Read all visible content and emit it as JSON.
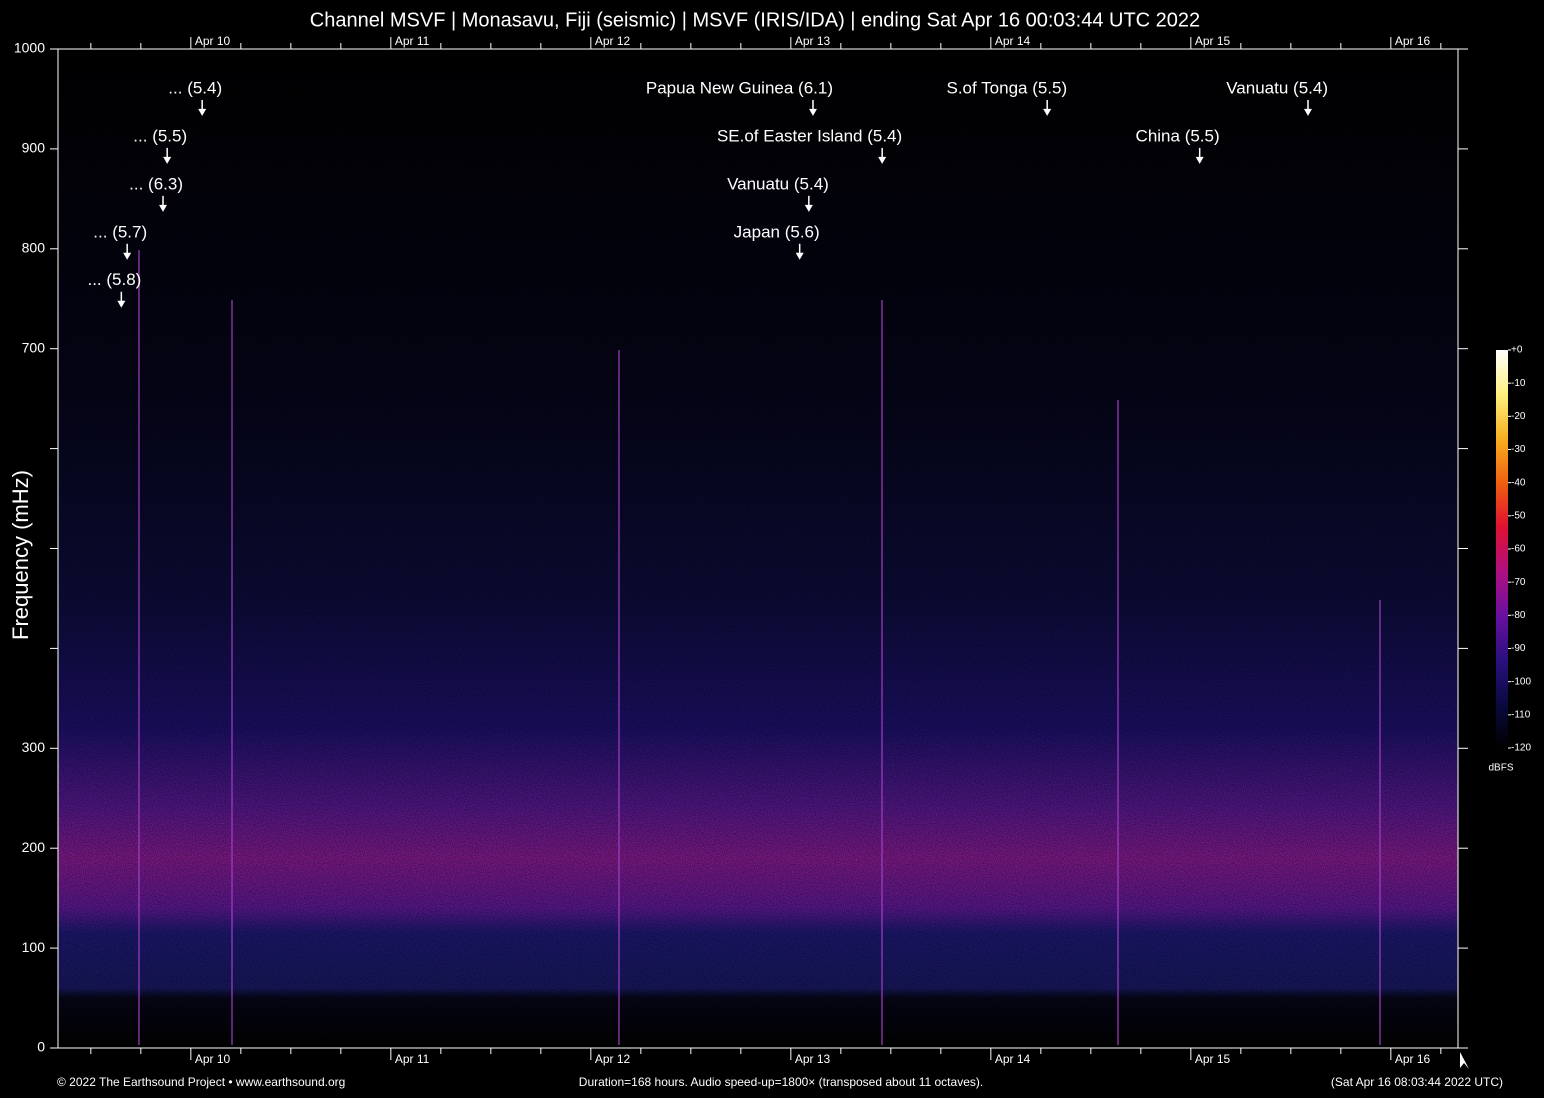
{
  "chart_data": {
    "type": "spectrogram",
    "title": "Channel MSVF | Monasavu, Fiji (seismic) | MSVF (IRIS/IDA) | ending Sat Apr 16 00:03:44 UTC 2022",
    "y_label": "Frequency (mHz)",
    "xlim": [
      0,
      168
    ],
    "xticks": [
      {
        "value": 15.94,
        "label": "Apr 10"
      },
      {
        "value": 39.94,
        "label": "Apr 11"
      },
      {
        "value": 63.94,
        "label": "Apr 12"
      },
      {
        "value": 87.94,
        "label": "Apr 13"
      },
      {
        "value": 111.94,
        "label": "Apr 14"
      },
      {
        "value": 135.94,
        "label": "Apr 15"
      },
      {
        "value": 159.94,
        "label": "Apr 16"
      }
    ],
    "xminorticks": [
      3.94,
      9.94,
      21.94,
      27.94,
      33.94,
      45.94,
      51.94,
      57.94,
      69.94,
      75.94,
      81.94,
      93.94,
      99.94,
      105.94,
      117.94,
      123.94,
      129.94,
      141.94,
      147.94,
      153.94,
      165.94
    ],
    "ylim": [
      0,
      1000
    ],
    "yticks": [
      0,
      100,
      200,
      300,
      700,
      800,
      900,
      1000
    ],
    "yminorticks": [
      400,
      500,
      600
    ],
    "colorbar": {
      "label": "dBFS",
      "lim": [
        -120,
        0
      ],
      "ticks": [
        {
          "value": 0,
          "label": "+0"
        },
        -10,
        -20,
        -30,
        -40,
        -50,
        -60,
        -70,
        -80,
        -90,
        -100,
        -110,
        -120
      ],
      "colors": [
        "#000000",
        "#0a0a40",
        "#2a1080",
        "#6a10a0",
        "#b01080",
        "#e01030",
        "#f06010",
        "#f8b020",
        "#fff080",
        "#ffffff"
      ]
    },
    "annotations": [
      {
        "text": "... (5.4)",
        "x": 17.3,
        "y": 933
      },
      {
        "text": "... (5.5)",
        "x": 13.1,
        "y": 885
      },
      {
        "text": "... (6.3)",
        "x": 12.6,
        "y": 837
      },
      {
        "text": "... (5.7)",
        "x": 8.3,
        "y": 789
      },
      {
        "text": "... (5.8)",
        "x": 7.6,
        "y": 741
      },
      {
        "text": "Papua New Guinea (6.1)",
        "x": 90.6,
        "y": 933
      },
      {
        "text": "SE.of Easter Island (5.4)",
        "x": 98.9,
        "y": 885
      },
      {
        "text": "Vanuatu (5.4)",
        "x": 90.1,
        "y": 837
      },
      {
        "text": "Japan (5.6)",
        "x": 89.0,
        "y": 789
      },
      {
        "text": "S.of Tonga (5.5)",
        "x": 118.7,
        "y": 933
      },
      {
        "text": "China (5.5)",
        "x": 137.0,
        "y": 885
      },
      {
        "text": "Vanuatu (5.4)",
        "x": 150.0,
        "y": 933
      }
    ]
  },
  "footer": {
    "left": "© 2022 The Earthsound Project • www.earthsound.org",
    "center": "Duration=168 hours. Audio speed-up=1800× (transposed about 11 octaves).",
    "right": "(Sat Apr 16 08:03:44 2022 UTC)"
  }
}
